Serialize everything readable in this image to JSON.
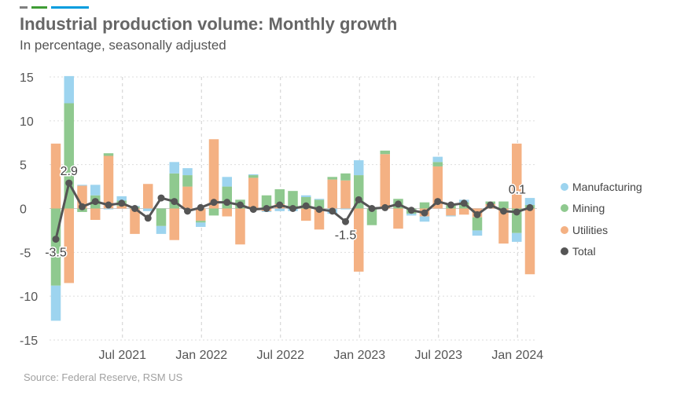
{
  "header": {
    "title": "Industrial production volume: Monthly growth",
    "subtitle": "In percentage, seasonally adjusted",
    "accent_colors": [
      "#808080",
      "#3f9c35",
      "#009cde"
    ]
  },
  "footer": {
    "source": "Source: Federal Reserve, RSM US"
  },
  "chart_data": {
    "type": "bar",
    "stacked": true,
    "title": "Industrial production volume: Monthly growth",
    "subtitle": "In percentage, seasonally adjusted",
    "ylim": [
      -15,
      15
    ],
    "yticks": [
      15,
      10,
      5,
      0,
      -5,
      -10,
      -15
    ],
    "ytick_labels": [
      "15",
      "10",
      "5",
      "0",
      "-5",
      "-10",
      "-15"
    ],
    "grid": true,
    "legend_position": "right",
    "categories": [
      "Feb 2021",
      "Mar 2021",
      "Apr 2021",
      "May 2021",
      "Jun 2021",
      "Jul 2021",
      "Aug 2021",
      "Sep 2021",
      "Oct 2021",
      "Nov 2021",
      "Dec 2021",
      "Jan 2022",
      "Feb 2022",
      "Mar 2022",
      "Apr 2022",
      "May 2022",
      "Jun 2022",
      "Jul 2022",
      "Aug 2022",
      "Sep 2022",
      "Oct 2022",
      "Nov 2022",
      "Dec 2022",
      "Jan 2023",
      "Feb 2023",
      "Mar 2023",
      "Apr 2023",
      "May 2023",
      "Jun 2023",
      "Jul 2023",
      "Aug 2023",
      "Sep 2023",
      "Oct 2023",
      "Nov 2023",
      "Dec 2023",
      "Jan 2024",
      "Feb 2024"
    ],
    "xtick_labels": [
      {
        "index": 5,
        "label": "Jul 2021"
      },
      {
        "index": 11,
        "label": "Jan 2022"
      },
      {
        "index": 17,
        "label": "Jul 2022"
      },
      {
        "index": 23,
        "label": "Jan 2023"
      },
      {
        "index": 29,
        "label": "Jul 2023"
      },
      {
        "index": 35,
        "label": "Jan 2024"
      }
    ],
    "series": [
      {
        "name": "Utilities",
        "kind": "bar",
        "color": "#f4b183",
        "values": [
          7.4,
          -8.5,
          2.6,
          -1.3,
          6.0,
          0.3,
          -2.9,
          2.8,
          0.0,
          -3.6,
          2.5,
          -1.4,
          7.9,
          -0.9,
          -4.1,
          3.5,
          -0.3,
          0.5,
          0.0,
          -1.4,
          -2.4,
          3.3,
          3.2,
          -7.2,
          0.0,
          6.2,
          -2.3,
          0.0,
          -0.9,
          4.8,
          -0.8,
          -0.7,
          -1.0,
          0.5,
          -4.0,
          7.4,
          -7.5
        ]
      },
      {
        "name": "Mining",
        "kind": "bar",
        "color": "#8fc98f",
        "values": [
          -8.8,
          12.0,
          -0.4,
          1.5,
          0.3,
          0.6,
          0.2,
          0.0,
          -2.0,
          4.0,
          1.3,
          -0.2,
          -0.8,
          2.5,
          1.0,
          0.3,
          1.5,
          1.7,
          2.0,
          1.3,
          1.0,
          0.3,
          0.8,
          3.8,
          -1.9,
          0.4,
          1.1,
          -0.6,
          0.7,
          0.5,
          0.4,
          0.7,
          -1.5,
          0.3,
          0.8,
          -2.8,
          0.4
        ]
      },
      {
        "name": "Manufacturing",
        "kind": "bar",
        "color": "#9dd4ef",
        "values": [
          -4.0,
          3.1,
          0.1,
          1.2,
          -0.1,
          0.5,
          0.1,
          -0.3,
          -0.9,
          1.3,
          0.8,
          -0.5,
          0.0,
          1.1,
          0.0,
          0.1,
          -0.1,
          -0.3,
          -0.3,
          0.2,
          0.1,
          -0.6,
          -0.1,
          1.7,
          0.0,
          0.0,
          0.0,
          -0.2,
          -0.6,
          0.6,
          -0.1,
          0.3,
          -0.6,
          0.0,
          0.0,
          -1.0,
          0.8
        ]
      },
      {
        "name": "Total",
        "kind": "line",
        "color": "#555555",
        "values": [
          -3.5,
          2.9,
          0.2,
          0.8,
          0.4,
          0.6,
          0.0,
          -1.1,
          1.2,
          0.8,
          -0.3,
          0.1,
          0.7,
          0.7,
          0.4,
          -0.1,
          0.0,
          0.4,
          0.0,
          0.3,
          -0.1,
          -0.3,
          -1.5,
          1.0,
          0.0,
          0.1,
          0.5,
          -0.2,
          -0.5,
          0.8,
          0.4,
          0.6,
          -0.7,
          0.4,
          -0.3,
          -0.4,
          0.1
        ]
      }
    ],
    "annotations": [
      {
        "index": 0,
        "series": "Total",
        "text": "-3.5",
        "position": "below"
      },
      {
        "index": 1,
        "series": "Total",
        "text": "2.9",
        "position": "above"
      },
      {
        "index": 22,
        "series": "Total",
        "text": "-1.5",
        "position": "below"
      },
      {
        "index": 36,
        "series": "Total",
        "text": "0.1",
        "position": "above-left"
      }
    ]
  }
}
